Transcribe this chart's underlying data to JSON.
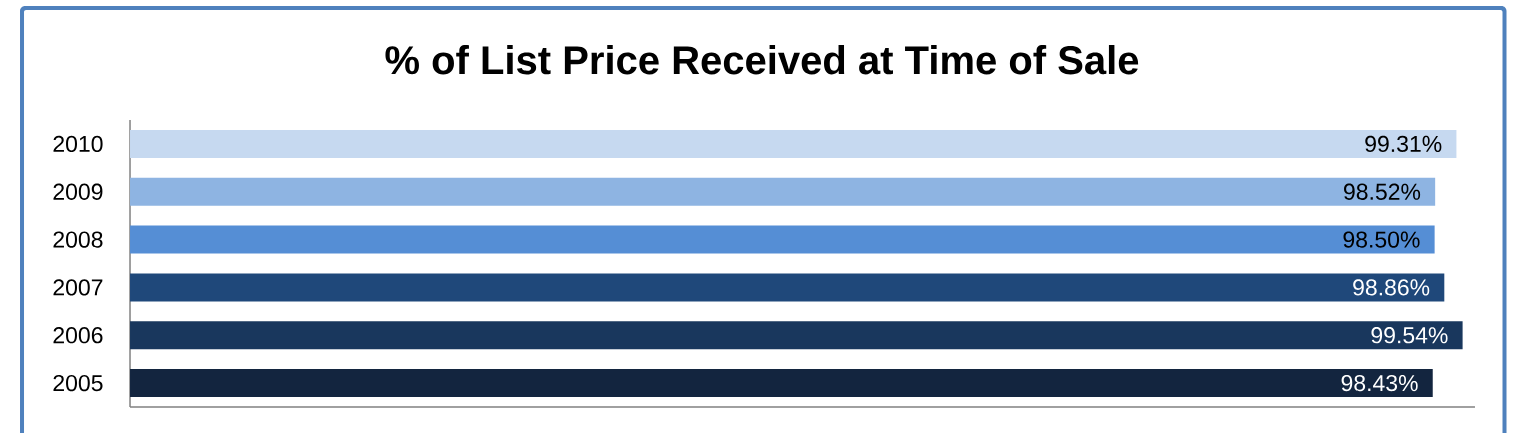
{
  "chart_data": {
    "type": "bar",
    "orientation": "horizontal",
    "title": "% of List Price Received at Time of Sale",
    "categories": [
      "2010",
      "2009",
      "2008",
      "2007",
      "2006",
      "2005"
    ],
    "values": [
      99.31,
      98.52,
      98.5,
      98.86,
      99.54,
      98.43
    ],
    "colors": [
      "#c6d9f0",
      "#8eb4e2",
      "#558ed5",
      "#1f487a",
      "#19375d",
      "#13253f"
    ],
    "value_labels": [
      "99.31%",
      "98.52%",
      "98.50%",
      "98.86%",
      "99.54%",
      "98.43%"
    ],
    "xlim": [
      50,
      100
    ],
    "tick_labels": "y"
  }
}
